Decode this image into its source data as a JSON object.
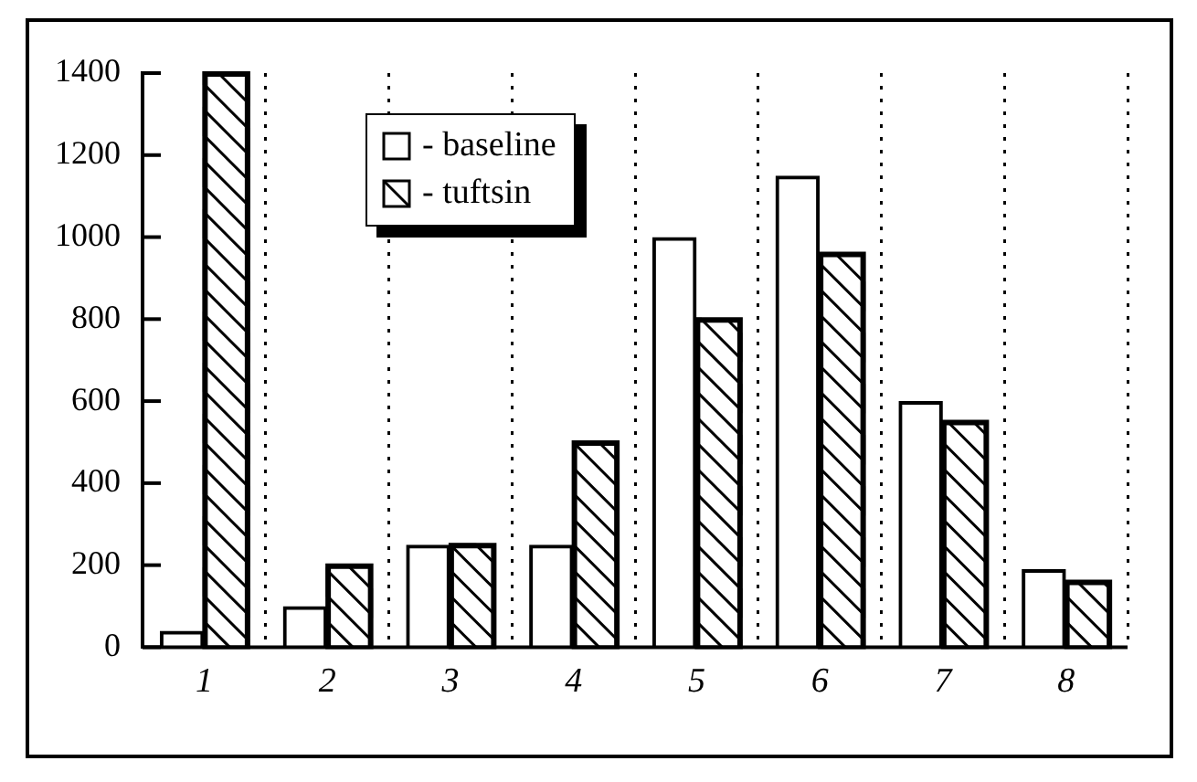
{
  "chart_data": {
    "type": "bar",
    "categories": [
      "1",
      "2",
      "3",
      "4",
      "5",
      "6",
      "7",
      "8"
    ],
    "series": [
      {
        "name": "- baseline",
        "color": "#000000",
        "values": [
          40,
          100,
          250,
          250,
          1000,
          1150,
          600,
          190
        ]
      },
      {
        "name": "- tuftsin",
        "color": "#000000",
        "values": [
          1400,
          200,
          250,
          500,
          800,
          960,
          550,
          160
        ]
      }
    ],
    "ylim": [
      0,
      1400
    ],
    "yticks": [
      0,
      200,
      400,
      600,
      800,
      1000,
      1200,
      1400
    ],
    "grid": "x",
    "legend": "top left"
  }
}
